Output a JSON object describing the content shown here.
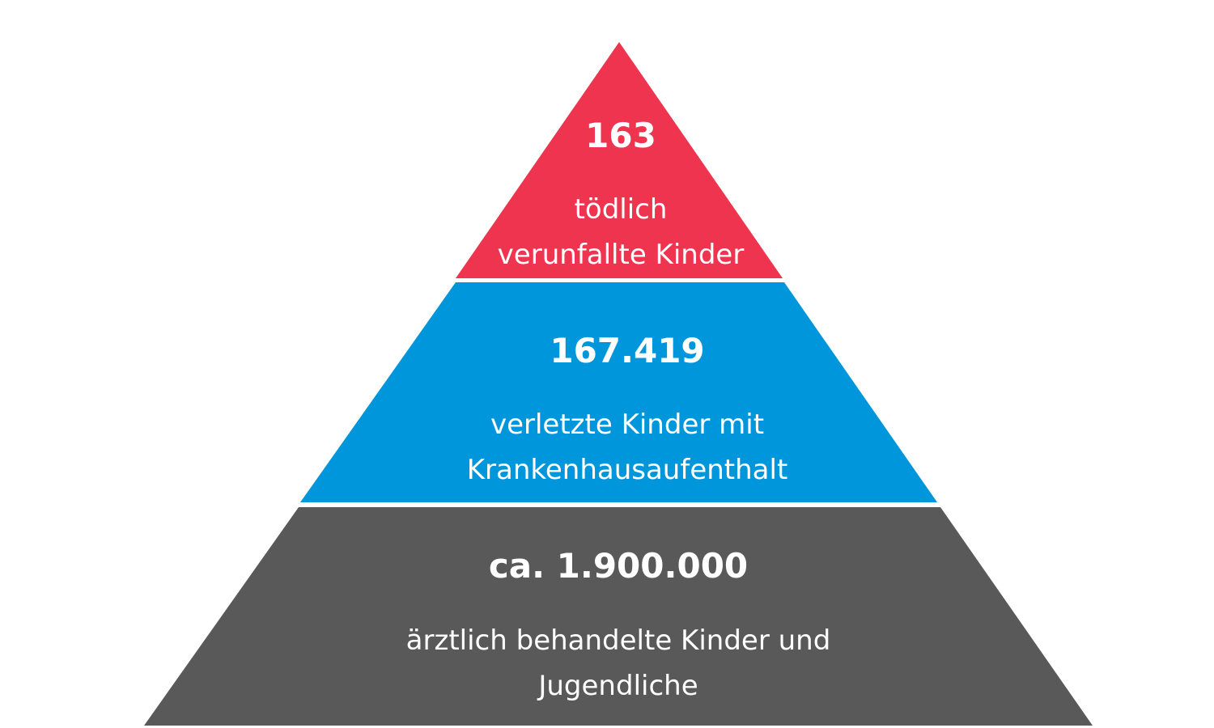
{
  "pyramid": {
    "tiers": [
      {
        "number": "163",
        "line1": "tödlich",
        "line2": "verunfallte Kinder",
        "color": "#ee344e"
      },
      {
        "number": "167.419",
        "line1": "verletzte Kinder mit",
        "line2": "Krankenhausaufenthalt",
        "color": "#0096db"
      },
      {
        "number": "ca. 1.900.000",
        "line1": "ärztlich behandelte Kinder und",
        "line2": "Jugendliche",
        "color": "#595959"
      }
    ]
  }
}
